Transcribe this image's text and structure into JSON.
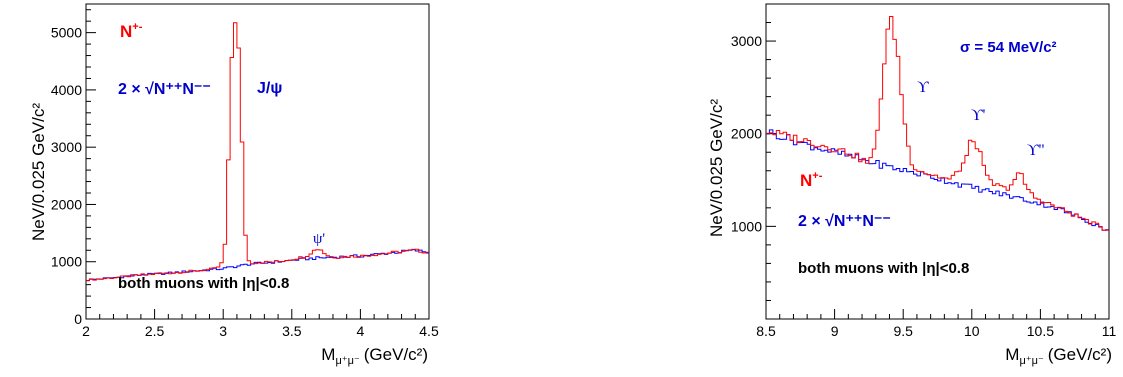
{
  "colors": {
    "total": "#ff0000",
    "background": "#0000ff",
    "axis": "#000000",
    "text_red": "#ff0000",
    "text_blue": "#0000cc"
  },
  "chart_data": [
    {
      "type": "line",
      "title": "",
      "xlabel": "M",
      "xlabel_sub": "μ⁺μ⁻",
      "xlabel_unit": "(GeV/c²)",
      "ylabel": "NeV/0.025 GeV/c²",
      "xlim": [
        2,
        4.5
      ],
      "ylim": [
        0,
        5500
      ],
      "xticks": [
        "2",
        "2.5",
        "3",
        "3.5",
        "4",
        "4.5"
      ],
      "yticks": [
        "0",
        "1000",
        "2000",
        "3000",
        "4000",
        "5000"
      ],
      "legend": [
        {
          "label": "N",
          "sup": "+-",
          "color": "#ff0000"
        },
        {
          "label": "2 × √N⁺⁺N⁻⁻",
          "color": "#0000ff"
        }
      ],
      "annotations": [
        "J/ψ",
        "ψ'",
        "both muons with |η|<0.8"
      ],
      "series": [
        {
          "name": "N+-",
          "x": [
            2.0,
            2.2,
            2.4,
            2.6,
            2.8,
            2.95,
            3.0,
            3.025,
            3.05,
            3.075,
            3.1,
            3.125,
            3.15,
            3.175,
            3.2,
            3.4,
            3.6,
            3.65,
            3.7,
            3.75,
            3.8,
            4.0,
            4.2,
            4.4,
            4.5
          ],
          "y": [
            680,
            720,
            770,
            800,
            840,
            880,
            1000,
            1600,
            3850,
            5300,
            5180,
            4200,
            1900,
            1050,
            980,
            1000,
            1090,
            1180,
            1240,
            1120,
            1080,
            1100,
            1150,
            1200,
            1160
          ]
        },
        {
          "name": "2×sqrt(N++N--)",
          "x": [
            2.0,
            2.2,
            2.4,
            2.6,
            2.8,
            3.0,
            3.2,
            3.4,
            3.6,
            3.8,
            4.0,
            4.2,
            4.4,
            4.5
          ],
          "y": [
            680,
            720,
            770,
            800,
            840,
            880,
            960,
            1000,
            1050,
            1080,
            1100,
            1150,
            1200,
            1160
          ]
        }
      ]
    },
    {
      "type": "line",
      "title": "",
      "xlabel": "M",
      "xlabel_sub": "μ⁺μ⁻",
      "xlabel_unit": "(GeV/c²)",
      "ylabel": "NeV/0.025 GeV/c²",
      "xlim": [
        8.5,
        11
      ],
      "ylim": [
        0,
        3400
      ],
      "xticks": [
        "8.5",
        "9",
        "9.5",
        "10",
        "10.5",
        "11"
      ],
      "yticks": [
        "1000",
        "2000",
        "3000"
      ],
      "legend": [
        {
          "label": "N",
          "sup": "+-",
          "color": "#ff0000"
        },
        {
          "label": "2 × √N⁺⁺N⁻⁻",
          "color": "#0000ff"
        }
      ],
      "annotations": [
        "σ = 54 MeV/c²",
        "ϒ",
        "ϒ'",
        "ϒ''",
        "both muons with |η|<0.8"
      ],
      "series": [
        {
          "name": "N+-",
          "x": [
            8.5,
            8.8,
            9.1,
            9.25,
            9.3,
            9.35,
            9.4,
            9.45,
            9.5,
            9.55,
            9.6,
            9.7,
            9.85,
            9.95,
            10.0,
            10.05,
            10.1,
            10.15,
            10.25,
            10.3,
            10.35,
            10.4,
            10.45,
            10.55,
            10.8,
            11.0
          ],
          "y": [
            2030,
            1920,
            1800,
            1680,
            1850,
            2600,
            3270,
            3000,
            2250,
            1720,
            1620,
            1560,
            1500,
            1700,
            1950,
            1850,
            1550,
            1460,
            1400,
            1480,
            1580,
            1420,
            1320,
            1250,
            1090,
            950
          ]
        },
        {
          "name": "2×sqrt(N++N--)",
          "x": [
            8.5,
            8.8,
            9.1,
            9.4,
            9.7,
            10.0,
            10.3,
            10.6,
            10.8,
            11.0
          ],
          "y": [
            2030,
            1880,
            1760,
            1640,
            1540,
            1420,
            1320,
            1210,
            1090,
            950
          ]
        }
      ]
    }
  ]
}
